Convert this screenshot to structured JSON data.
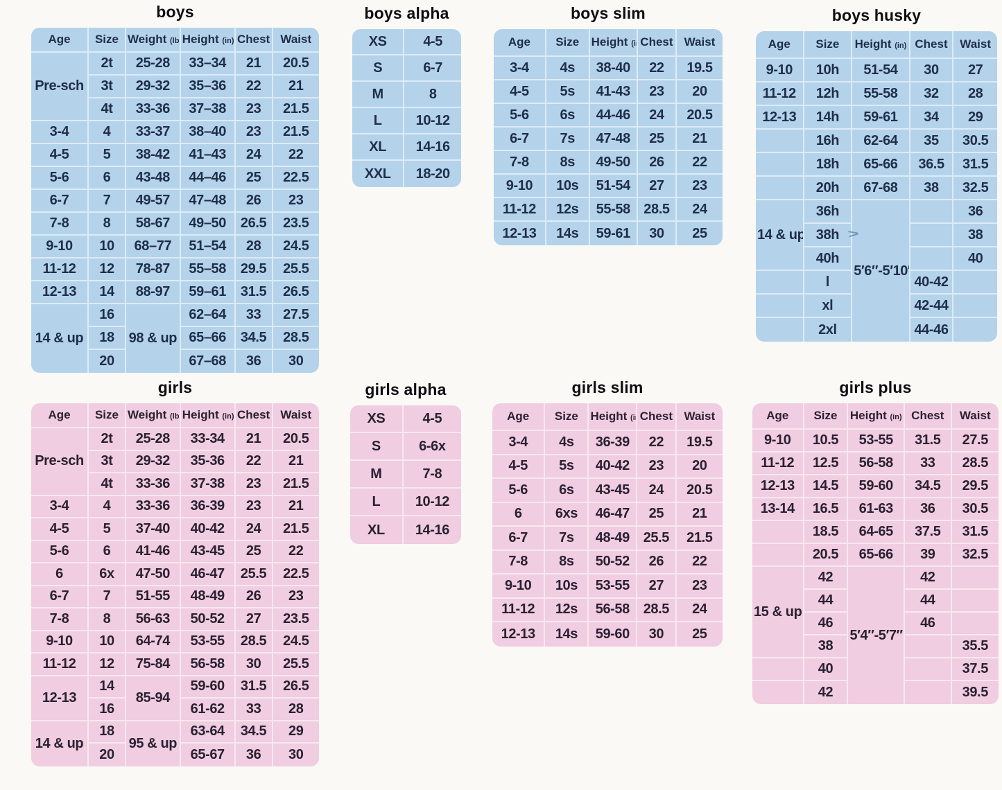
{
  "page": {
    "background": "#faf9f5"
  },
  "themes": {
    "blue": {
      "bg": "#b4d3eb",
      "text": "#1f2e47"
    },
    "pink": {
      "bg": "#f0cde0",
      "text": "#2a2133"
    }
  },
  "stray_mark": {
    "glyph": ">"
  },
  "tables": [
    {
      "id": "boys",
      "title": "boys",
      "theme": "blue",
      "columns": [
        "Age",
        "Size",
        "Weight (lbs)",
        "Height (in)",
        "Chest",
        "Waist"
      ],
      "rows": [
        [
          {
            "t": "Pre-sch",
            "rs": 3
          },
          "2t",
          "25-28",
          "33–34",
          "21",
          "20.5"
        ],
        [
          null,
          "3t",
          "29-32",
          "35–36",
          "22",
          "21"
        ],
        [
          null,
          "4t",
          "33-36",
          "37–38",
          "23",
          "21.5"
        ],
        [
          "3-4",
          "4",
          "33-37",
          "38–40",
          "23",
          "21.5"
        ],
        [
          "4-5",
          "5",
          "38-42",
          "41–43",
          "24",
          "22"
        ],
        [
          "5-6",
          "6",
          "43-48",
          "44–46",
          "25",
          "22.5"
        ],
        [
          "6-7",
          "7",
          "49-57",
          "47–48",
          "26",
          "23"
        ],
        [
          "7-8",
          "8",
          "58-67",
          "49–50",
          "26.5",
          "23.5"
        ],
        [
          "9-10",
          "10",
          "68–77",
          "51–54",
          "28",
          "24.5"
        ],
        [
          "11-12",
          "12",
          "78-87",
          "55–58",
          "29.5",
          "25.5"
        ],
        [
          "12-13",
          "14",
          "88-97",
          "59–61",
          "31.5",
          "26.5"
        ],
        [
          {
            "t": "14 & up",
            "rs": 3
          },
          "16",
          {
            "t": "98 & up",
            "rs": 3
          },
          "62–64",
          "33",
          "27.5"
        ],
        [
          null,
          "18",
          null,
          "65–66",
          "34.5",
          "28.5"
        ],
        [
          null,
          "20",
          null,
          "67–68",
          "36",
          "30"
        ]
      ]
    },
    {
      "id": "boys-alpha",
      "title": "boys alpha",
      "theme": "blue",
      "rows": [
        [
          "XS",
          "4-5"
        ],
        [
          "S",
          "6-7"
        ],
        [
          "M",
          "8"
        ],
        [
          "L",
          "10-12"
        ],
        [
          "XL",
          "14-16"
        ],
        [
          "XXL",
          "18-20"
        ]
      ]
    },
    {
      "id": "boys-slim",
      "title": "boys slim",
      "theme": "blue",
      "columns": [
        "Age",
        "Size",
        "Height (in)",
        "Chest",
        "Waist"
      ],
      "rows": [
        [
          "3-4",
          "4s",
          "38-40",
          "22",
          "19.5"
        ],
        [
          "4-5",
          "5s",
          "41-43",
          "23",
          "20"
        ],
        [
          "5-6",
          "6s",
          "44-46",
          "24",
          "20.5"
        ],
        [
          "6-7",
          "7s",
          "47-48",
          "25",
          "21"
        ],
        [
          "7-8",
          "8s",
          "49-50",
          "26",
          "22"
        ],
        [
          "9-10",
          "10s",
          "51-54",
          "27",
          "23"
        ],
        [
          "11-12",
          "12s",
          "55-58",
          "28.5",
          "24"
        ],
        [
          "12-13",
          "14s",
          "59-61",
          "30",
          "25"
        ]
      ]
    },
    {
      "id": "boys-husky",
      "title": "boys husky",
      "theme": "blue",
      "columns": [
        "Age",
        "Size",
        "Height (in)",
        "Chest",
        "Waist"
      ],
      "rows": [
        [
          "9-10",
          "10h",
          "51-54",
          "30",
          "27"
        ],
        [
          "11-12",
          "12h",
          "55-58",
          "32",
          "28"
        ],
        [
          "12-13",
          "14h",
          "59-61",
          "34",
          "29"
        ],
        [
          "",
          "16h",
          "62-64",
          "35",
          "30.5"
        ],
        [
          "",
          "18h",
          "65-66",
          "36.5",
          "31.5"
        ],
        [
          "",
          "20h",
          "67-68",
          "38",
          "32.5"
        ],
        [
          {
            "t": "14 & up",
            "rs": 3
          },
          "36h",
          {
            "t": "5′6″-5′10″",
            "rs": 6
          },
          "",
          "36"
        ],
        [
          null,
          "38h",
          null,
          "",
          "38"
        ],
        [
          null,
          "40h",
          null,
          "",
          "40"
        ],
        [
          "",
          "l",
          null,
          "40-42",
          ""
        ],
        [
          "",
          "xl",
          null,
          "42-44",
          ""
        ],
        [
          "",
          "2xl",
          null,
          "44-46",
          ""
        ]
      ]
    },
    {
      "id": "girls",
      "title": "girls",
      "theme": "pink",
      "columns": [
        "Age",
        "Size",
        "Weight (lbs)",
        "Height (in)",
        "Chest",
        "Waist"
      ],
      "rows": [
        [
          {
            "t": "Pre-sch",
            "rs": 3
          },
          "2t",
          "25-28",
          "33-34",
          "21",
          "20.5"
        ],
        [
          null,
          "3t",
          "29-32",
          "35-36",
          "22",
          "21"
        ],
        [
          null,
          "4t",
          "33-36",
          "37-38",
          "23",
          "21.5"
        ],
        [
          "3-4",
          "4",
          "33-36",
          "36-39",
          "23",
          "21"
        ],
        [
          "4-5",
          "5",
          "37-40",
          "40-42",
          "24",
          "21.5"
        ],
        [
          "5-6",
          "6",
          "41-46",
          "43-45",
          "25",
          "22"
        ],
        [
          "6",
          "6x",
          "47-50",
          "46-47",
          "25.5",
          "22.5"
        ],
        [
          "6-7",
          "7",
          "51-55",
          "48-49",
          "26",
          "23"
        ],
        [
          "7-8",
          "8",
          "56-63",
          "50-52",
          "27",
          "23.5"
        ],
        [
          "9-10",
          "10",
          "64-74",
          "53-55",
          "28.5",
          "24.5"
        ],
        [
          "11-12",
          "12",
          "75-84",
          "56-58",
          "30",
          "25.5"
        ],
        [
          {
            "t": "12-13",
            "rs": 2
          },
          "14",
          {
            "t": "85-94",
            "rs": 2
          },
          "59-60",
          "31.5",
          "26.5"
        ],
        [
          null,
          "16",
          null,
          "61-62",
          "33",
          "28"
        ],
        [
          {
            "t": "14 & up",
            "rs": 2
          },
          "18",
          {
            "t": "95 & up",
            "rs": 2
          },
          "63-64",
          "34.5",
          "29"
        ],
        [
          null,
          "20",
          null,
          "65-67",
          "36",
          "30"
        ]
      ]
    },
    {
      "id": "girls-alpha",
      "title": "girls alpha",
      "theme": "pink",
      "rows": [
        [
          "XS",
          "4-5"
        ],
        [
          "S",
          "6-6x"
        ],
        [
          "M",
          "7-8"
        ],
        [
          "L",
          "10-12"
        ],
        [
          "XL",
          "14-16"
        ]
      ]
    },
    {
      "id": "girls-slim",
      "title": "girls slim",
      "theme": "pink",
      "columns": [
        "Age",
        "Size",
        "Height (in)",
        "Chest",
        "Waist"
      ],
      "rows": [
        [
          "3-4",
          "4s",
          "36-39",
          "22",
          "19.5"
        ],
        [
          "4-5",
          "5s",
          "40-42",
          "23",
          "20"
        ],
        [
          "5-6",
          "6s",
          "43-45",
          "24",
          "20.5"
        ],
        [
          "6",
          "6xs",
          "46-47",
          "25",
          "21"
        ],
        [
          "6-7",
          "7s",
          "48-49",
          "25.5",
          "21.5"
        ],
        [
          "7-8",
          "8s",
          "50-52",
          "26",
          "22"
        ],
        [
          "9-10",
          "10s",
          "53-55",
          "27",
          "23"
        ],
        [
          "11-12",
          "12s",
          "56-58",
          "28.5",
          "24"
        ],
        [
          "12-13",
          "14s",
          "59-60",
          "30",
          "25"
        ]
      ]
    },
    {
      "id": "girls-plus",
      "title": "girls plus",
      "theme": "pink",
      "columns": [
        "Age",
        "Size",
        "Height (in)",
        "Chest",
        "Waist"
      ],
      "rows": [
        [
          "9-10",
          "10.5",
          "53-55",
          "31.5",
          "27.5"
        ],
        [
          "11-12",
          "12.5",
          "56-58",
          "33",
          "28.5"
        ],
        [
          "12-13",
          "14.5",
          "59-60",
          "34.5",
          "29.5"
        ],
        [
          "13-14",
          "16.5",
          "61-63",
          "36",
          "30.5"
        ],
        [
          "",
          "18.5",
          "64-65",
          "37.5",
          "31.5"
        ],
        [
          "",
          "20.5",
          "65-66",
          "39",
          "32.5"
        ],
        [
          {
            "t": "15 & up",
            "rs": 4
          },
          "42",
          {
            "t": "5′4″-5′7″",
            "rs": 6
          },
          "42",
          ""
        ],
        [
          null,
          "44",
          null,
          "44",
          ""
        ],
        [
          null,
          "46",
          null,
          "46",
          ""
        ],
        [
          null,
          "38",
          null,
          "",
          "35.5"
        ],
        [
          "",
          "40",
          null,
          "",
          "37.5"
        ],
        [
          "",
          "42",
          null,
          "",
          "39.5"
        ]
      ]
    }
  ]
}
